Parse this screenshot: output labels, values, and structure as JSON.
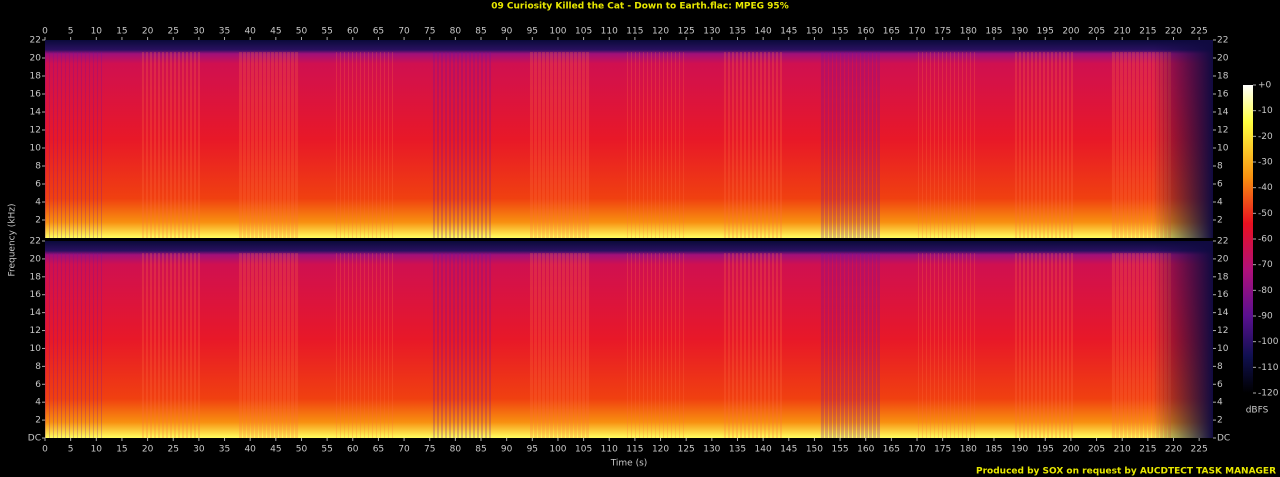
{
  "chart_data": {
    "type": "spectrogram",
    "title": "09 Curiosity Killed the Cat - Down to Earth.flac: MPEG 95%",
    "x_label": "Time (s)",
    "y_label": "Frequency (kHz)",
    "xlim": [
      0,
      227.7
    ],
    "xticks": [
      0,
      5,
      10,
      15,
      20,
      25,
      30,
      35,
      40,
      45,
      50,
      55,
      60,
      65,
      70,
      75,
      80,
      85,
      90,
      95,
      100,
      105,
      110,
      115,
      120,
      125,
      130,
      135,
      140,
      145,
      150,
      155,
      160,
      165,
      170,
      175,
      180,
      185,
      190,
      195,
      200,
      205,
      210,
      215,
      220,
      225
    ],
    "ylim": [
      0,
      22
    ],
    "yticks": [
      {
        "value": 0,
        "label": "DC"
      },
      2,
      4,
      6,
      8,
      10,
      12,
      14,
      16,
      18,
      20,
      22
    ],
    "colorbar": {
      "label": "dBFS",
      "lim": [
        -120,
        0
      ],
      "ticks": [
        {
          "value": 0,
          "label": "+0"
        },
        -10,
        -20,
        -30,
        -40,
        -50,
        -60,
        -70,
        -80,
        -90,
        -100,
        -110,
        -120
      ]
    },
    "footer": "Produced by SOX on request by AUCDTECT TASK MANAGER"
  }
}
